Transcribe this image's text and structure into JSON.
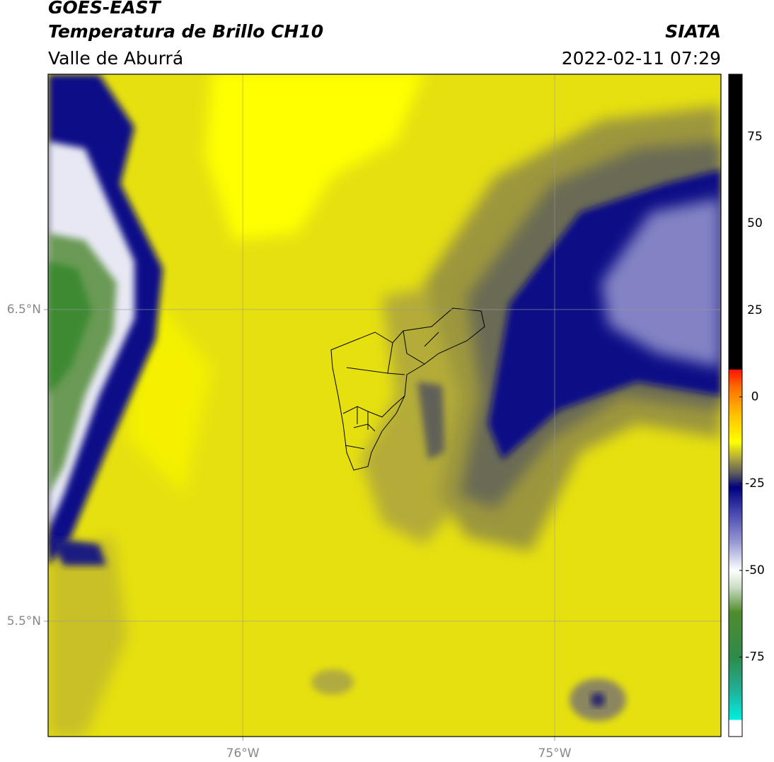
{
  "header": {
    "title": "GOES-EAST",
    "subtitle": "Temperatura de Brillo CH10",
    "region": "Valle de Aburrá",
    "source": "SIATA",
    "datetime": "2022-02-11 07:29"
  },
  "map": {
    "xlim": [
      -76.624,
      -74.467
    ],
    "ylim": [
      5.13,
      7.255
    ],
    "xticks": [
      {
        "value": -76,
        "label": "76°W"
      },
      {
        "value": -75,
        "label": "75°W"
      }
    ],
    "yticks": [
      {
        "value": 6.5,
        "label": "6.5°N"
      },
      {
        "value": 5.5,
        "label": "5.5°N"
      }
    ],
    "grid": true
  },
  "colorbar": {
    "lim": [
      -93,
      93
    ],
    "ticks": [
      75,
      50,
      25,
      0,
      -25,
      -50,
      -75
    ],
    "stops": [
      {
        "value": -93,
        "color": "#00f0e0"
      },
      {
        "value": -85,
        "color": "#1fb39c"
      },
      {
        "value": -75,
        "color": "#2e8b4a"
      },
      {
        "value": -62,
        "color": "#4f8c2c"
      },
      {
        "value": -55,
        "color": "#c9dcc0"
      },
      {
        "value": -50,
        "color": "#ffffff"
      },
      {
        "value": -42,
        "color": "#9a9ad4"
      },
      {
        "value": -32,
        "color": "#3a3aa8"
      },
      {
        "value": -26,
        "color": "#000080"
      },
      {
        "value": -22,
        "color": "#5c5c5c"
      },
      {
        "value": -18,
        "color": "#a8a040"
      },
      {
        "value": -13,
        "color": "#ffff00"
      },
      {
        "value": -5,
        "color": "#ffc000"
      },
      {
        "value": 3,
        "color": "#ff6a00"
      },
      {
        "value": 8,
        "color": "#ff1000"
      },
      {
        "value": 8,
        "color": "#000000"
      },
      {
        "value": 93,
        "color": "#000000"
      }
    ]
  }
}
